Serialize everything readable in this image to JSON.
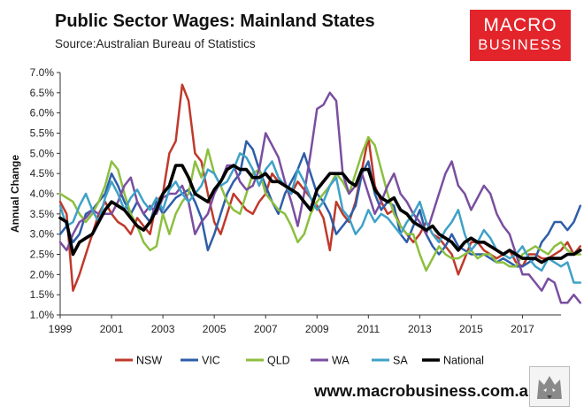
{
  "header": {
    "title": "Public Sector Wages: Mainland States",
    "source": "Source:Australian Bureau of Statistics"
  },
  "brand": {
    "line1": "MACRO",
    "line2": "BUSINESS",
    "website": "www.macrobusiness.com.au",
    "logo_color": "#e3242b"
  },
  "chart_data": {
    "type": "line",
    "ylabel": "Annual Change",
    "xlabel": "",
    "xlim": [
      1999,
      2018.5
    ],
    "ylim": [
      1.0,
      7.0
    ],
    "x_ticks": [
      1999,
      2001,
      2003,
      2005,
      2007,
      2009,
      2011,
      2013,
      2015,
      2017
    ],
    "y_ticks": [
      "1.0%",
      "1.5%",
      "2.0%",
      "2.5%",
      "3.0%",
      "3.5%",
      "4.0%",
      "4.5%",
      "5.0%",
      "5.5%",
      "6.0%",
      "6.5%",
      "7.0%"
    ],
    "grid": false,
    "legend_position": "bottom",
    "x_start": 1999,
    "x_step": 0.25,
    "series": [
      {
        "name": "NSW",
        "color": "#c0392b",
        "width": 2.5,
        "values": [
          3.8,
          3.5,
          1.6,
          2.0,
          2.5,
          3.0,
          3.5,
          3.8,
          3.5,
          3.3,
          3.2,
          3.0,
          3.4,
          3.2,
          3.0,
          3.8,
          4.0,
          5.0,
          5.3,
          6.7,
          6.3,
          5.0,
          4.8,
          4.0,
          3.3,
          3.0,
          3.5,
          4.0,
          3.8,
          3.6,
          3.5,
          3.8,
          4.0,
          4.5,
          4.3,
          4.2,
          4.0,
          4.3,
          4.1,
          3.9,
          3.7,
          3.4,
          2.6,
          3.8,
          3.5,
          3.3,
          3.8,
          4.6,
          5.4,
          4.2,
          3.8,
          3.5,
          3.6,
          3.2,
          3.0,
          2.8,
          3.0,
          3.3,
          3.0,
          2.9,
          2.7,
          2.5,
          2.0,
          2.4,
          2.8,
          2.8,
          2.6,
          2.5,
          2.4,
          2.5,
          2.6,
          2.3,
          2.2,
          2.5,
          2.5,
          2.4,
          2.4,
          2.5,
          2.6,
          2.8,
          2.5,
          2.7
        ]
      },
      {
        "name": "VIC",
        "color": "#2e5ea8",
        "width": 2.5,
        "values": [
          3.0,
          3.2,
          2.8,
          3.0,
          3.5,
          3.6,
          3.8,
          4.0,
          4.5,
          4.2,
          3.8,
          3.5,
          3.8,
          3.5,
          3.3,
          3.8,
          3.5,
          3.7,
          3.9,
          4.0,
          4.1,
          3.8,
          3.4,
          2.6,
          3.0,
          3.5,
          4.0,
          4.3,
          4.5,
          5.3,
          5.1,
          4.6,
          4.2,
          3.8,
          3.5,
          4.0,
          4.3,
          4.6,
          5.0,
          4.5,
          4.0,
          3.8,
          3.5,
          3.0,
          3.2,
          3.4,
          3.7,
          4.5,
          4.8,
          4.0,
          3.6,
          3.8,
          3.7,
          3.0,
          2.8,
          3.2,
          3.6,
          3.0,
          2.7,
          2.5,
          2.7,
          3.0,
          2.7,
          2.6,
          2.5,
          2.5,
          2.5,
          2.4,
          2.3,
          2.4,
          2.3,
          2.2,
          2.2,
          2.3,
          2.4,
          2.8,
          3.0,
          3.3,
          3.3,
          3.1,
          3.3,
          3.7
        ]
      },
      {
        "name": "QLD",
        "color": "#8cbf3f",
        "width": 2.5,
        "values": [
          4.0,
          3.9,
          3.8,
          3.5,
          3.3,
          3.5,
          3.8,
          4.2,
          4.8,
          4.6,
          4.0,
          3.5,
          3.2,
          2.8,
          2.6,
          2.7,
          3.5,
          3.0,
          3.5,
          3.8,
          4.0,
          4.8,
          4.4,
          5.1,
          4.5,
          4.2,
          3.8,
          3.6,
          3.5,
          4.0,
          4.5,
          4.6,
          4.0,
          3.8,
          3.6,
          3.5,
          3.2,
          2.8,
          3.0,
          3.5,
          3.8,
          4.0,
          4.2,
          4.5,
          4.3,
          4.0,
          4.5,
          5.0,
          5.4,
          5.2,
          4.6,
          4.0,
          3.5,
          3.2,
          3.0,
          3.0,
          2.5,
          2.1,
          2.4,
          2.7,
          2.5,
          2.4,
          2.4,
          2.5,
          2.6,
          2.4,
          2.5,
          2.5,
          2.3,
          2.3,
          2.2,
          2.2,
          2.5,
          2.6,
          2.7,
          2.6,
          2.5,
          2.7,
          2.8,
          2.6,
          2.5,
          2.5
        ]
      },
      {
        "name": "WA",
        "color": "#7a4ea0",
        "width": 2.5,
        "values": [
          2.8,
          2.6,
          3.0,
          3.3,
          3.4,
          3.6,
          3.5,
          3.5,
          3.5,
          3.8,
          4.2,
          4.4,
          3.8,
          3.5,
          3.7,
          3.5,
          3.9,
          4.0,
          4.0,
          4.2,
          3.8,
          3.0,
          3.3,
          3.5,
          4.0,
          4.3,
          4.7,
          4.7,
          4.3,
          4.1,
          4.2,
          4.6,
          5.5,
          5.2,
          4.9,
          4.3,
          3.8,
          3.2,
          4.0,
          5.0,
          6.1,
          6.2,
          6.5,
          6.3,
          4.5,
          4.0,
          4.2,
          4.5,
          4.0,
          3.5,
          3.8,
          4.2,
          4.5,
          4.0,
          3.8,
          3.5,
          3.3,
          3.0,
          3.5,
          4.0,
          4.5,
          4.8,
          4.2,
          4.0,
          3.6,
          3.9,
          4.2,
          4.0,
          3.5,
          3.2,
          3.0,
          2.5,
          2.0,
          2.0,
          1.8,
          1.6,
          1.9,
          1.8,
          1.3,
          1.3,
          1.5,
          1.3
        ]
      },
      {
        "name": "SA",
        "color": "#3fa1c6",
        "width": 2.5,
        "values": [
          3.7,
          3.2,
          3.3,
          3.7,
          4.0,
          3.6,
          3.3,
          3.9,
          4.3,
          4.0,
          3.6,
          3.9,
          4.1,
          3.8,
          3.6,
          3.9,
          3.6,
          4.1,
          4.3,
          4.0,
          3.8,
          4.0,
          4.2,
          4.6,
          4.5,
          4.2,
          4.3,
          4.6,
          5.0,
          4.9,
          4.6,
          4.2,
          4.6,
          4.8,
          4.4,
          4.2,
          4.0,
          4.6,
          4.3,
          3.9,
          3.6,
          3.8,
          4.2,
          4.4,
          3.6,
          3.4,
          3.0,
          3.2,
          3.6,
          3.3,
          3.5,
          3.4,
          3.2,
          3.0,
          3.3,
          3.5,
          3.8,
          3.3,
          3.0,
          2.8,
          3.1,
          3.3,
          3.6,
          3.0,
          2.6,
          2.8,
          3.1,
          2.9,
          2.6,
          2.5,
          2.4,
          2.5,
          2.7,
          2.4,
          2.2,
          2.1,
          2.4,
          2.3,
          2.2,
          2.3,
          1.8,
          1.8
        ]
      },
      {
        "name": "National",
        "color": "#000000",
        "width": 3.6,
        "values": [
          3.4,
          3.3,
          2.5,
          2.8,
          2.9,
          3.0,
          3.3,
          3.6,
          3.8,
          3.7,
          3.6,
          3.4,
          3.2,
          3.1,
          3.3,
          3.6,
          4.0,
          4.2,
          4.7,
          4.7,
          4.4,
          4.0,
          3.9,
          3.8,
          4.1,
          4.3,
          4.6,
          4.7,
          4.6,
          4.6,
          4.4,
          4.4,
          4.5,
          4.3,
          4.3,
          4.2,
          4.1,
          4.0,
          3.8,
          3.6,
          4.1,
          4.3,
          4.5,
          4.5,
          4.5,
          4.3,
          4.2,
          4.6,
          4.6,
          4.1,
          3.9,
          3.8,
          3.9,
          3.6,
          3.5,
          3.3,
          3.2,
          3.1,
          3.2,
          3.0,
          2.9,
          2.8,
          2.6,
          2.8,
          2.9,
          2.8,
          2.8,
          2.7,
          2.6,
          2.5,
          2.6,
          2.5,
          2.4,
          2.4,
          2.4,
          2.3,
          2.4,
          2.4,
          2.4,
          2.5,
          2.5,
          2.6
        ]
      }
    ]
  }
}
